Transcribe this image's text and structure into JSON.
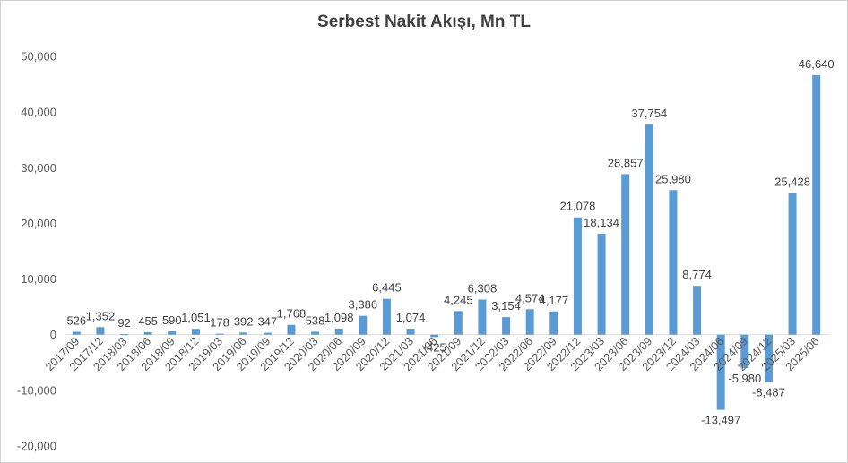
{
  "chart_data": {
    "type": "bar",
    "title": "Serbest Nakit Akışı, Mn TL",
    "xlabel": "",
    "ylabel": "",
    "ylim": [
      -20000,
      50000
    ],
    "yticks": [
      -20000,
      -10000,
      0,
      10000,
      20000,
      30000,
      40000,
      50000
    ],
    "ytick_labels": [
      "-20,000",
      "-10,000",
      "0",
      "10,000",
      "20,000",
      "30,000",
      "40,000",
      "50,000"
    ],
    "grid": false,
    "legend": "none",
    "bar_color": "#5b9bd5",
    "categories": [
      "2017/09",
      "2017/12",
      "2018/03",
      "2018/06",
      "2018/09",
      "2018/12",
      "2019/03",
      "2019/06",
      "2019/09",
      "2019/12",
      "2020/03",
      "2020/06",
      "2020/09",
      "2020/12",
      "2021/03",
      "2021/06",
      "2021/09",
      "2021/12",
      "2022/03",
      "2022/06",
      "2022/09",
      "2022/12",
      "2023/03",
      "2023/06",
      "2023/09",
      "2023/12",
      "2024/03",
      "2024/06",
      "2024/09",
      "2024/12",
      "2025/03",
      "2025/06"
    ],
    "values": [
      526,
      1352,
      92,
      455,
      590,
      1051,
      178,
      392,
      347,
      1768,
      538,
      1098,
      3386,
      6445,
      1074,
      -425,
      4245,
      6308,
      3154,
      4574,
      4177,
      21078,
      18134,
      28857,
      37754,
      25980,
      8774,
      -13497,
      -5980,
      -8487,
      25428,
      46640
    ],
    "value_labels": [
      "526",
      "1,352",
      "92",
      "455",
      "590",
      "1,051",
      "178",
      "392",
      "347",
      "1,768",
      "538",
      "1,098",
      "3,386",
      "6,445",
      "1,074",
      "-425",
      "4,245",
      "6,308",
      "3,154",
      "4,574",
      "4,177",
      "21,078",
      "18,134",
      "28,857",
      "37,754",
      "25,980",
      "8,774",
      "-13,497",
      "-5,980",
      "-8,487",
      "25,428",
      "46,640"
    ]
  }
}
